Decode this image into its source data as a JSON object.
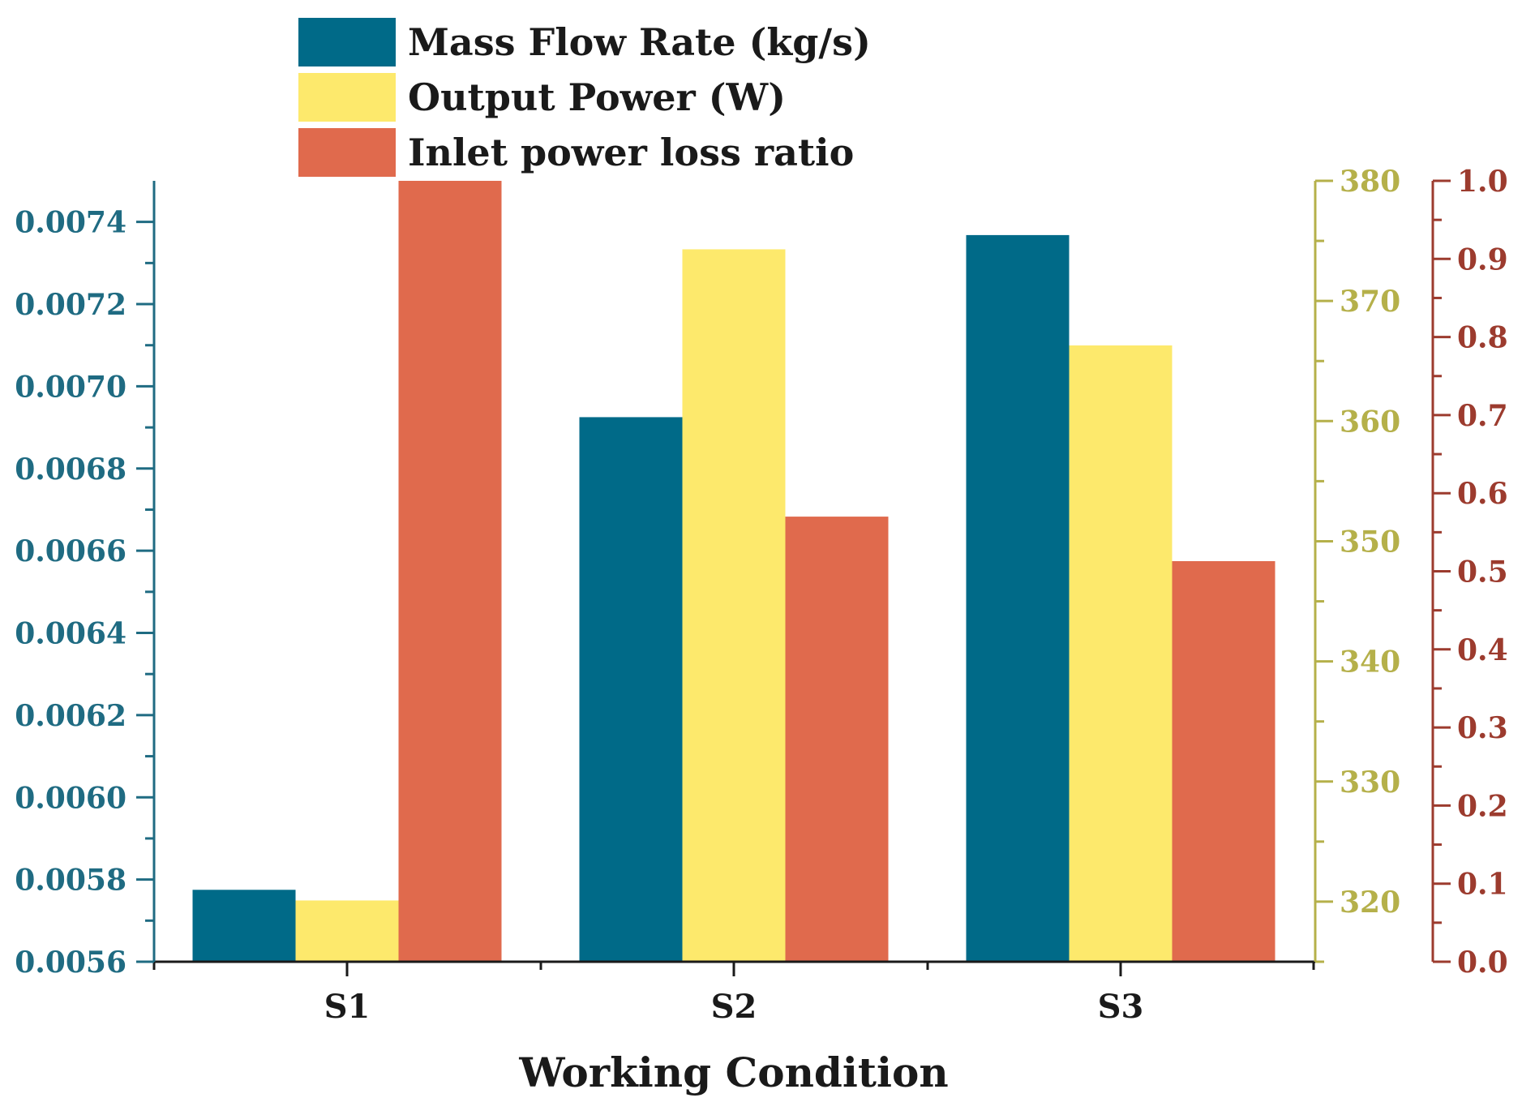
{
  "chart_data": {
    "type": "bar",
    "xlabel": "Working Condition",
    "categories": [
      "S1",
      "S2",
      "S3"
    ],
    "series": [
      {
        "name": "Mass Flow Rate (kg/s)",
        "color": "#006a88",
        "axis": "left",
        "values": [
          0.005775,
          0.006925,
          0.007368
        ]
      },
      {
        "name": "Output Power (W)",
        "color": "#fde96c",
        "axis": "right1",
        "values": [
          320.1,
          374.3,
          366.3
        ]
      },
      {
        "name": "Inlet power loss ratio",
        "color": "#e06a4d",
        "axis": "right2",
        "values": [
          1.0,
          0.57,
          0.513
        ]
      }
    ],
    "axes": {
      "left": {
        "ylim": [
          0.0056,
          0.0075
        ],
        "ticks": [
          "0.0056",
          "0.0058",
          "0.0060",
          "0.0062",
          "0.0064",
          "0.0066",
          "0.0068",
          "0.0070",
          "0.0072",
          "0.0074"
        ],
        "color": "#1f6b82"
      },
      "right1": {
        "ylim": [
          315,
          380
        ],
        "ticks": [
          "320",
          "330",
          "340",
          "350",
          "360",
          "370",
          "380"
        ],
        "color": "#b5b04a"
      },
      "right2": {
        "ylim": [
          0.0,
          1.0
        ],
        "ticks": [
          "0.0",
          "0.1",
          "0.2",
          "0.3",
          "0.4",
          "0.5",
          "0.6",
          "0.7",
          "0.8",
          "0.9",
          "1.0"
        ],
        "color": "#9c3b2e"
      }
    },
    "legend_position": "top"
  }
}
